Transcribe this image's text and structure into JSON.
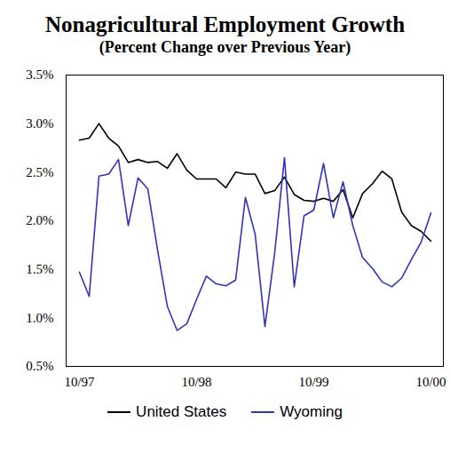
{
  "chart_data": {
    "type": "line",
    "title": "Nonagricultural Employment Growth",
    "subtitle": "(Percent Change over Previous Year)",
    "categories": [
      "10/97",
      null,
      null,
      null,
      null,
      null,
      null,
      null,
      null,
      null,
      null,
      null,
      "10/98",
      null,
      null,
      null,
      null,
      null,
      null,
      null,
      null,
      null,
      null,
      null,
      "10/99",
      null,
      null,
      null,
      null,
      null,
      null,
      null,
      null,
      null,
      null,
      null,
      "10/00"
    ],
    "series": [
      {
        "name": "United States",
        "color": "#000000",
        "values": [
          2.83,
          2.85,
          3.0,
          2.85,
          2.77,
          2.6,
          2.63,
          2.6,
          2.61,
          2.54,
          2.69,
          2.52,
          2.43,
          2.43,
          2.43,
          2.34,
          2.5,
          2.48,
          2.48,
          2.28,
          2.31,
          2.45,
          2.27,
          2.21,
          2.2,
          2.23,
          2.2,
          2.32,
          2.03,
          2.28,
          2.38,
          2.51,
          2.43,
          2.09,
          1.95,
          1.89,
          1.79
        ]
      },
      {
        "name": "Wyoming",
        "color": "#3333bb",
        "values": [
          1.47,
          1.22,
          2.46,
          2.48,
          2.63,
          1.95,
          2.44,
          2.33,
          1.7,
          1.12,
          0.87,
          0.94,
          1.19,
          1.43,
          1.35,
          1.33,
          1.39,
          2.24,
          1.86,
          0.91,
          1.67,
          2.65,
          1.32,
          2.05,
          2.11,
          2.59,
          2.03,
          2.4,
          1.95,
          1.62,
          1.51,
          1.37,
          1.32,
          1.41,
          1.6,
          1.78,
          2.08
        ]
      }
    ],
    "ylim": [
      0.5,
      3.5
    ],
    "yticks": [
      {
        "value": 0.5,
        "label": "0.5%"
      },
      {
        "value": 1.0,
        "label": "1.0%"
      },
      {
        "value": 1.5,
        "label": "1.5%"
      },
      {
        "value": 2.0,
        "label": "2.0%"
      },
      {
        "value": 2.5,
        "label": "2.5%"
      },
      {
        "value": 3.0,
        "label": "3.0%"
      },
      {
        "value": 3.5,
        "label": "3.5%"
      }
    ],
    "grid": false,
    "legend": "bottom"
  }
}
